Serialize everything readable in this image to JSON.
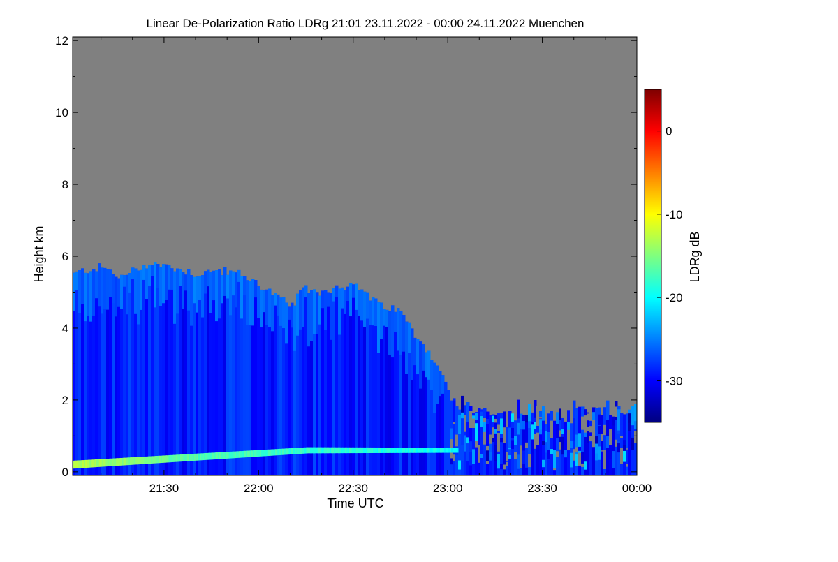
{
  "chart_data": {
    "type": "heatmap",
    "title": "Linear De-Polarization Ratio LDRg   21:01 23.11.2022 - 00:00 24.11.2022 Muenchen",
    "xlabel": "Time UTC",
    "ylabel": "Height km",
    "colorbar_label": "LDRg dB",
    "x_range_minutes": [
      -179,
      0
    ],
    "x_ticks": [
      {
        "label": "21:30",
        "minutes": -150
      },
      {
        "label": "22:00",
        "minutes": -120
      },
      {
        "label": "22:30",
        "minutes": -90
      },
      {
        "label": "23:00",
        "minutes": -60
      },
      {
        "label": "23:30",
        "minutes": -30
      },
      {
        "label": "00:00",
        "minutes": 0
      }
    ],
    "ylim": [
      -0.1,
      12.1
    ],
    "y_ticks": [
      0,
      2,
      4,
      6,
      8,
      10,
      12
    ],
    "colorbar_range": [
      -35,
      5
    ],
    "colorbar_ticks": [
      0,
      -10,
      -20,
      -30
    ],
    "no_signal_color": "#808080",
    "colormap": [
      "#00007f",
      "#0000ff",
      "#007fff",
      "#00ffff",
      "#7fff7f",
      "#ffff00",
      "#ff7f00",
      "#ff0000",
      "#7f0000"
    ],
    "cloud_top_km": [
      [
        -179,
        5.5
      ],
      [
        -176,
        5.6
      ],
      [
        -170,
        5.7
      ],
      [
        -164,
        5.4
      ],
      [
        -160,
        5.6
      ],
      [
        -155,
        5.8
      ],
      [
        -148,
        5.7
      ],
      [
        -140,
        5.5
      ],
      [
        -133,
        5.6
      ],
      [
        -126,
        5.5
      ],
      [
        -120,
        5.2
      ],
      [
        -115,
        4.9
      ],
      [
        -110,
        4.6
      ],
      [
        -106,
        5.1
      ],
      [
        -100,
        5.0
      ],
      [
        -94,
        5.2
      ],
      [
        -88,
        5.1
      ],
      [
        -82,
        4.6
      ],
      [
        -76,
        4.5
      ],
      [
        -72,
        4.0
      ],
      [
        -69,
        3.6
      ],
      [
        -66,
        3.3
      ],
      [
        -63,
        2.8
      ],
      [
        -61,
        2.4
      ],
      [
        -59,
        2.0
      ],
      [
        -57,
        1.8
      ],
      [
        -52,
        1.7
      ],
      [
        -40,
        1.6
      ],
      [
        -28,
        1.6
      ],
      [
        -18,
        1.7
      ],
      [
        -8,
        1.7
      ],
      [
        0,
        1.7
      ]
    ],
    "boundary_layer": {
      "start_height_km": 0.2,
      "peak_height_km": 0.45,
      "end_height_km": 0.6,
      "ldr_db": -17
    },
    "ldr_regions": [
      {
        "region": "upper ice cloud",
        "height_km": [
          1.0,
          5.8
        ],
        "ldr_db": -29
      },
      {
        "region": "boundary layer aerosol",
        "height_km": [
          0.1,
          0.7
        ],
        "ldr_db": -15
      },
      {
        "region": "low cloud layer after 23:00",
        "height_km": [
          0.6,
          1.7
        ],
        "ldr_db": -27
      }
    ]
  }
}
